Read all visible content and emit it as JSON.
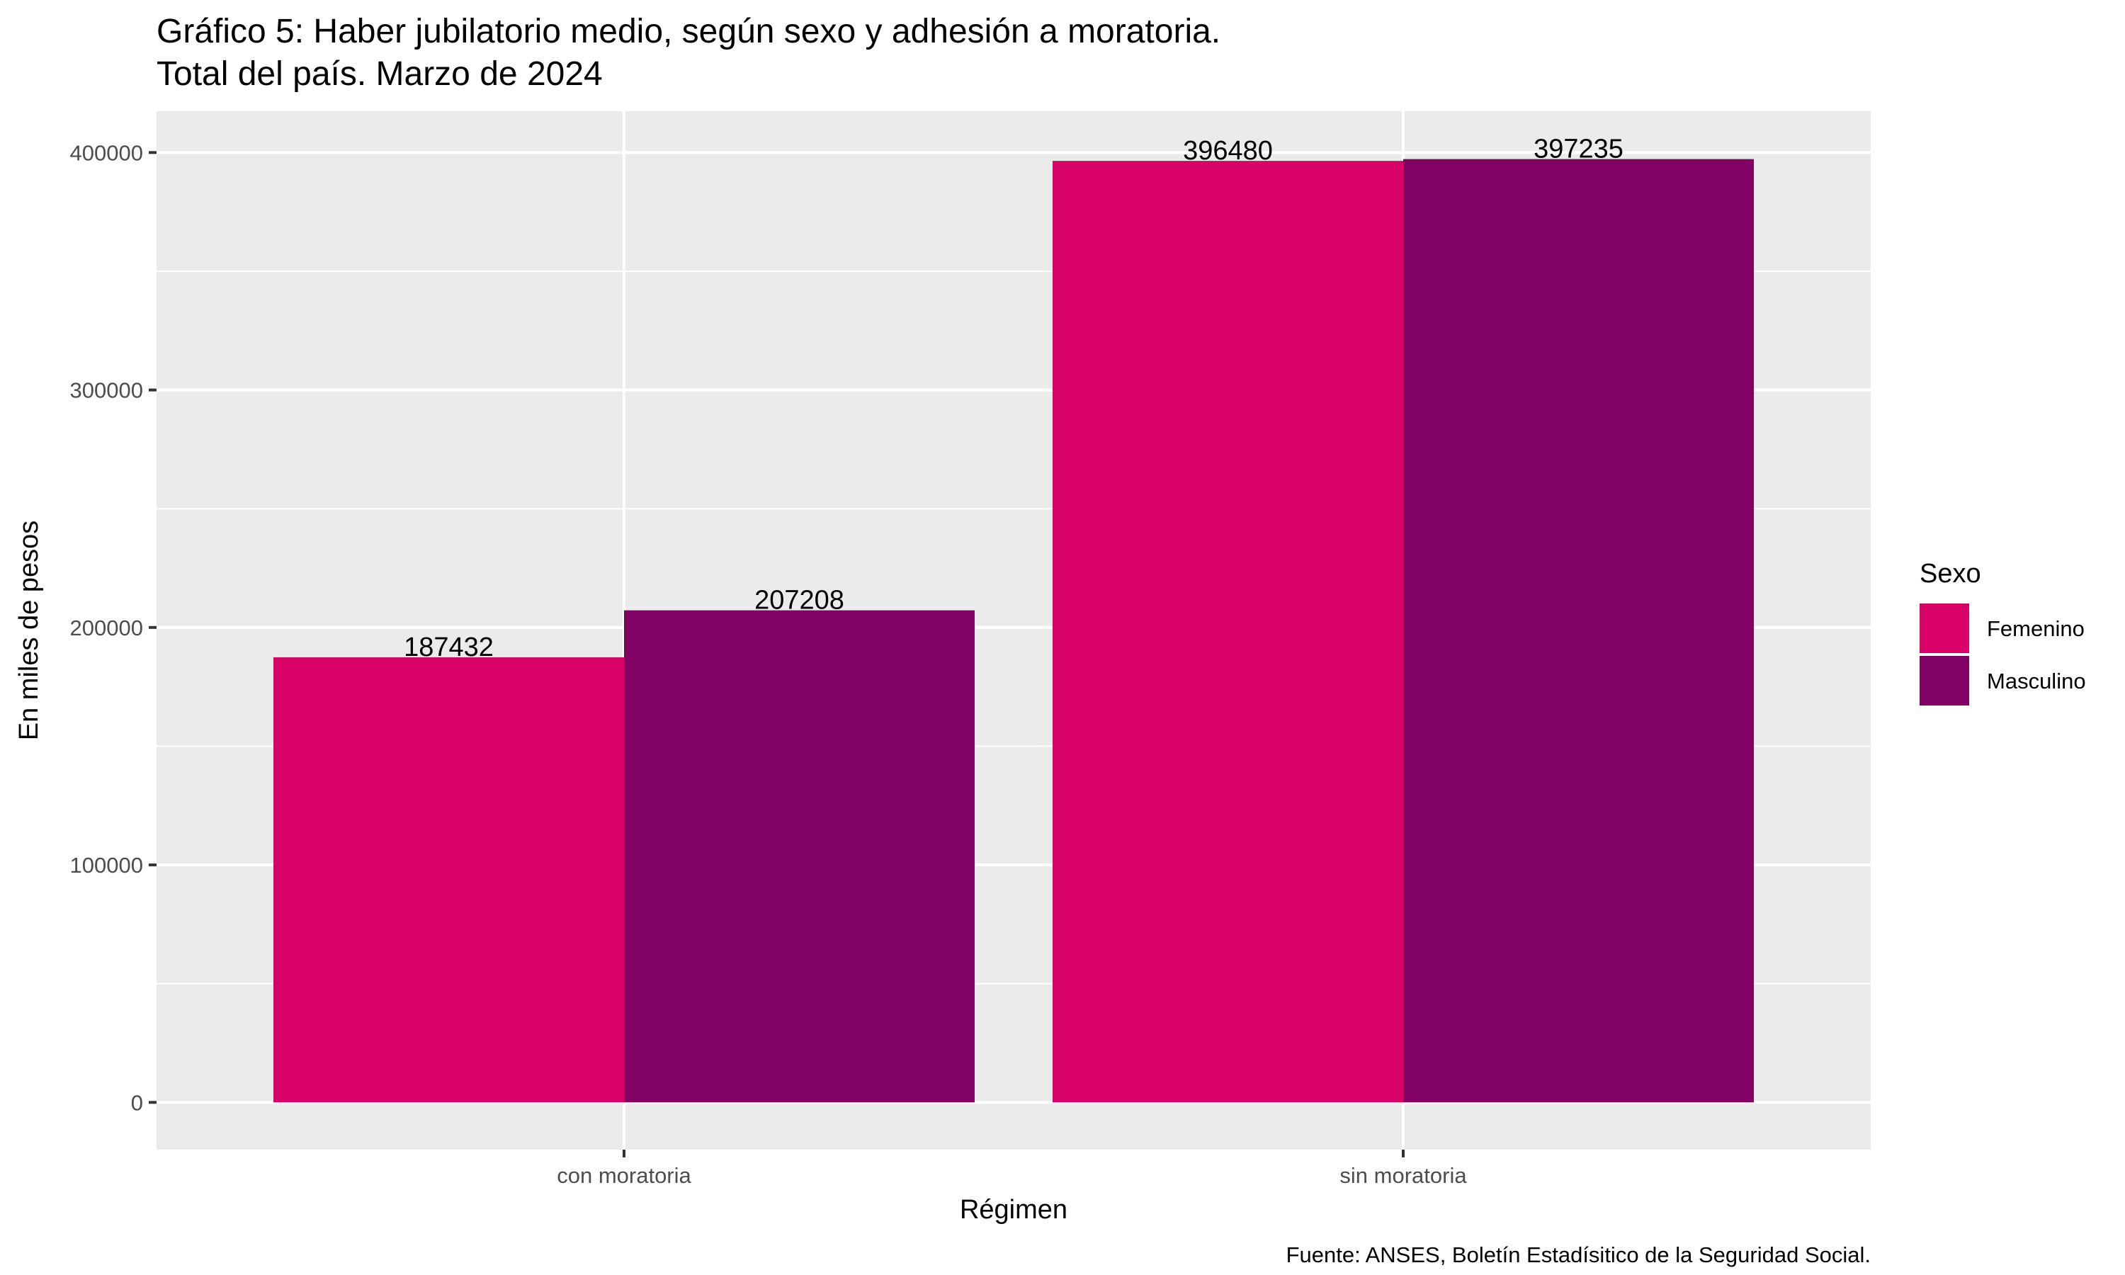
{
  "chart_data": {
    "type": "bar",
    "title_line1": "Gráfico 5: Haber jubilatorio medio, según sexo y adhesión a moratoria.",
    "title_line2": "Total del país. Marzo de 2024",
    "xlabel": "Régimen",
    "ylabel": "En miles de pesos",
    "categories": [
      "con moratoria",
      "sin moratoria"
    ],
    "series": [
      {
        "name": "Femenino",
        "color": "#D90368",
        "values": [
          187432,
          396480
        ]
      },
      {
        "name": "Masculino",
        "color": "#820263",
        "values": [
          207208,
          397235
        ]
      }
    ],
    "ylim": [
      -19900,
      417400
    ],
    "yticks": [
      0,
      100000,
      200000,
      300000,
      400000
    ],
    "ytick_labels": [
      "0",
      "100000",
      "200000",
      "300000",
      "400000"
    ],
    "legend_title": "Sexo",
    "legend_position": "right",
    "grid": true,
    "caption": "Fuente: ANSES, Boletín Estadísitico de la Seguridad Social."
  }
}
